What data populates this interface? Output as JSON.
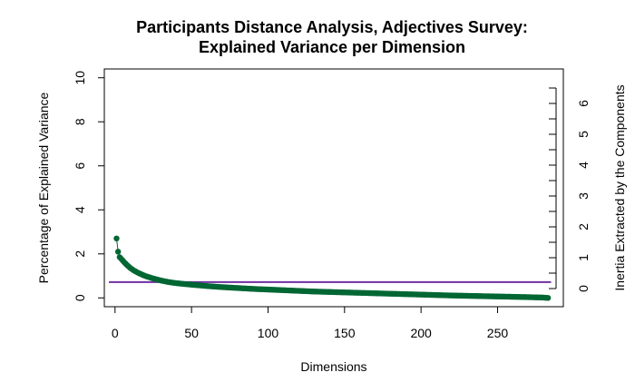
{
  "chart_data": {
    "type": "scatter",
    "title_line1": "Participants Distance Analysis, Adjectives Survey:",
    "title_line2": "Explained Variance per Dimension",
    "xlabel": "Dimensions",
    "ylabel": "Percentage of Explained Variance",
    "ylabel_right": "Inertia Extracted by the Components",
    "xlim": [
      -7,
      293
    ],
    "ylim": [
      -0.4,
      10.4
    ],
    "xticks": [
      0,
      50,
      100,
      150,
      200,
      250
    ],
    "yticks": [
      0,
      2,
      4,
      6,
      8,
      10
    ],
    "right_yticks": [
      0,
      1,
      2,
      3,
      4,
      5,
      6
    ],
    "right_axis_max": 6.5,
    "n_points": 283,
    "point_color": "#006633",
    "reference_line": {
      "y": 0.72,
      "color": "#7030a0"
    },
    "series": [
      {
        "values_sampled": [
          [
            1,
            2.7
          ],
          [
            2,
            2.1
          ],
          [
            3,
            1.85
          ],
          [
            4,
            1.78
          ],
          [
            5,
            1.7
          ],
          [
            6,
            1.62
          ],
          [
            7,
            1.55
          ],
          [
            8,
            1.48
          ],
          [
            9,
            1.42
          ],
          [
            10,
            1.36
          ],
          [
            12,
            1.26
          ],
          [
            14,
            1.18
          ],
          [
            16,
            1.11
          ],
          [
            18,
            1.05
          ],
          [
            20,
            0.99
          ],
          [
            25,
            0.88
          ],
          [
            30,
            0.79
          ],
          [
            35,
            0.72
          ],
          [
            40,
            0.67
          ],
          [
            50,
            0.6
          ],
          [
            60,
            0.54
          ],
          [
            70,
            0.49
          ],
          [
            80,
            0.45
          ],
          [
            90,
            0.41
          ],
          [
            100,
            0.38
          ],
          [
            110,
            0.35
          ],
          [
            120,
            0.32
          ],
          [
            130,
            0.29
          ],
          [
            140,
            0.27
          ],
          [
            150,
            0.25
          ],
          [
            160,
            0.23
          ],
          [
            170,
            0.21
          ],
          [
            180,
            0.19
          ],
          [
            190,
            0.17
          ],
          [
            200,
            0.15
          ],
          [
            210,
            0.13
          ],
          [
            220,
            0.11
          ],
          [
            230,
            0.095
          ],
          [
            240,
            0.08
          ],
          [
            250,
            0.065
          ],
          [
            260,
            0.05
          ],
          [
            270,
            0.035
          ],
          [
            280,
            0.015
          ],
          [
            283,
            0.0
          ]
        ]
      }
    ]
  }
}
